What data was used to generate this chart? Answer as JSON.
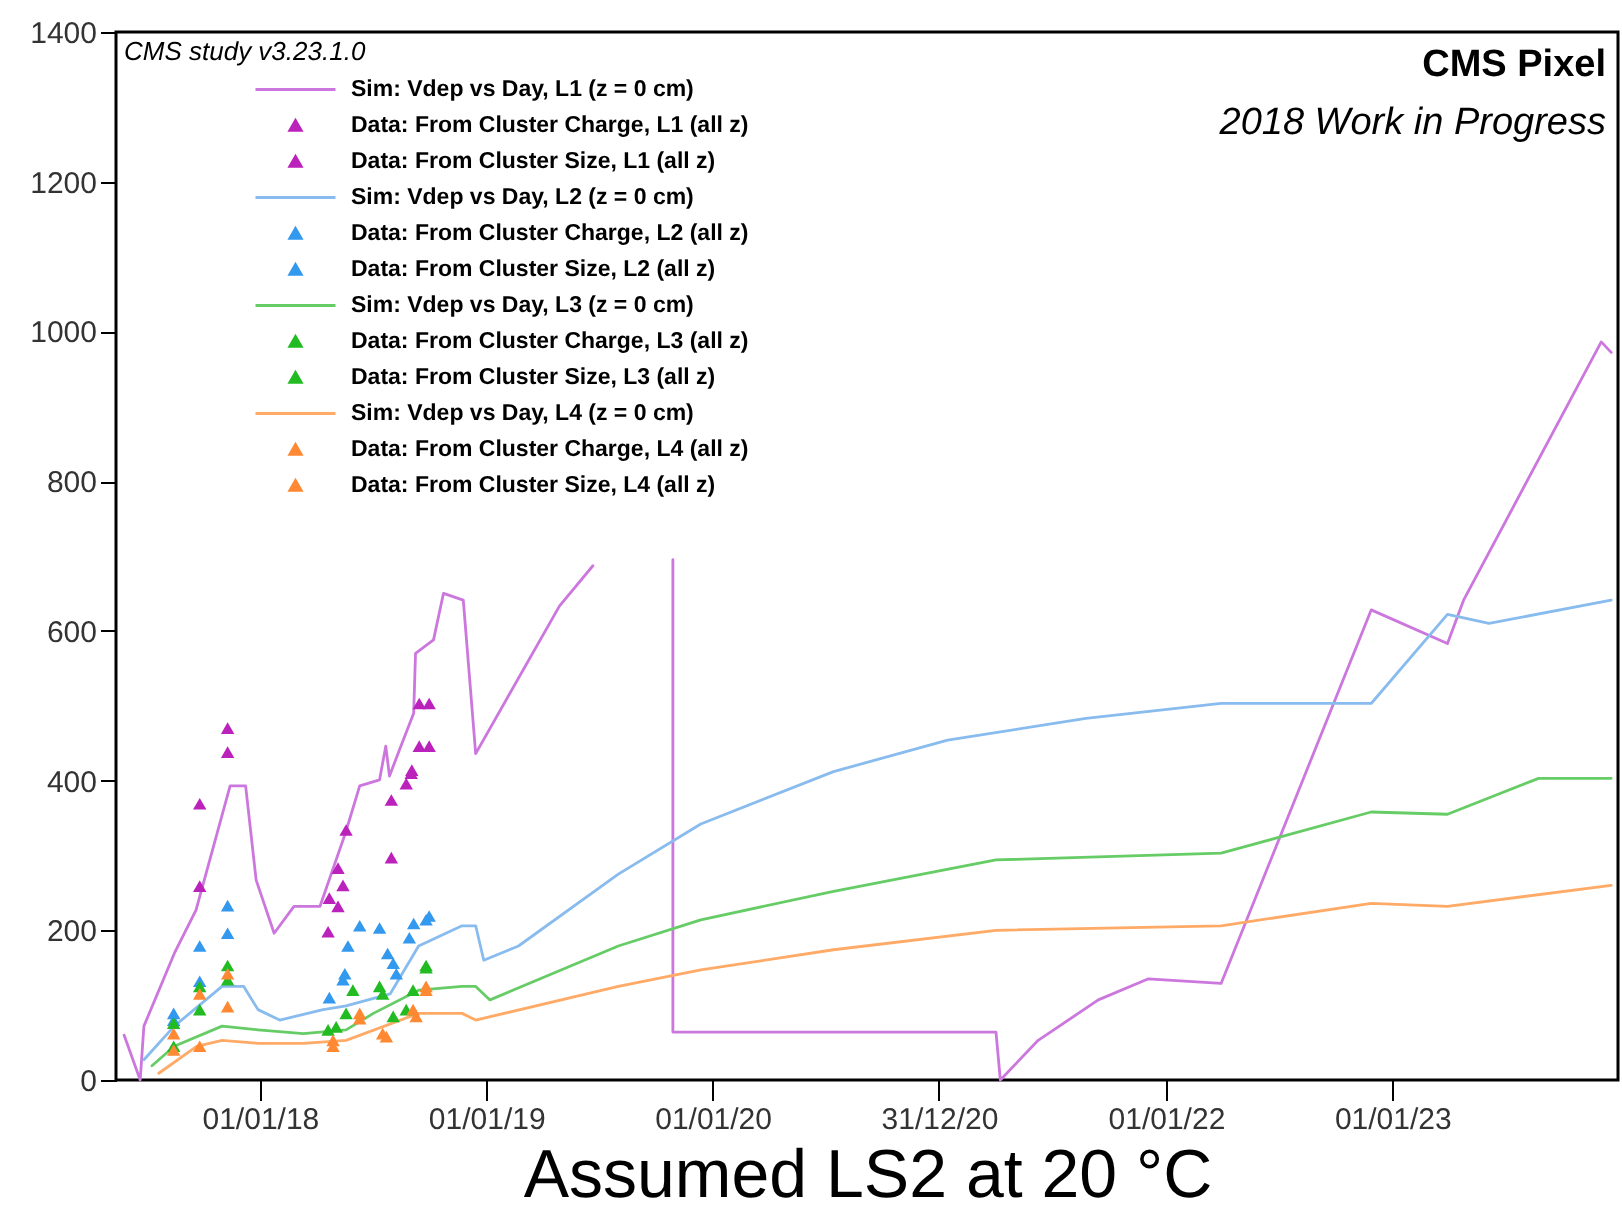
{
  "chart_data": {
    "type": "line",
    "title": "CMS Pixel",
    "subtitle": "2018 Work in Progress",
    "xlabel": "Assumed LS2 at 20 °C",
    "legend_title": "CMS study v3.23.1.0",
    "legend": "top left",
    "xlim": [
      "2017-05-14",
      "2023-12-31"
    ],
    "xticks": [
      {
        "value": "2018-01-01",
        "label": "01/01/18"
      },
      {
        "value": "2019-01-01",
        "label": "01/01/19"
      },
      {
        "value": "2020-01-01",
        "label": "01/01/20"
      },
      {
        "value": "2020-12-31",
        "label": "31/12/20"
      },
      {
        "value": "2022-01-01",
        "label": "01/01/22"
      },
      {
        "value": "2023-01-01",
        "label": "01/01/23"
      }
    ],
    "ylim": [
      0,
      1400
    ],
    "yticks": [
      0,
      200,
      400,
      600,
      800,
      1000,
      1200,
      1400
    ],
    "series": [
      {
        "name": "Sim: Vdep vs Day, L1 (z = 0 cm)",
        "color": "#cc77dd",
        "x": [
          "2017-05-27",
          "2017-06-22",
          "2017-06-28",
          "2017-08-16",
          "2017-09-20",
          "2017-11-14",
          "2017-12-09",
          "2017-12-26",
          "2018-01-24",
          "2018-02-25",
          "2018-04-08",
          "2018-05-19",
          "2018-06-11",
          "2018-07-13",
          "2018-07-23",
          "2018-07-29",
          "2018-08-14",
          "2018-09-06",
          "2018-09-09",
          "2018-10-08",
          "2018-10-24",
          "2018-11-25",
          "2018-12-15",
          "2019-04-29",
          "2019-06-22",
          "2019-08-01",
          "2019-10-29",
          "2019-10-29",
          "2021-04-02",
          "2021-04-09",
          "2021-06-09",
          "2021-09-14",
          "2021-12-03",
          "2022-03-31",
          "2022-11-28",
          "2023-03-31",
          "2023-04-26",
          "2023-12-04",
          "2023-12-20"
        ],
        "values": [
          60,
          0,
          72,
          169,
          227,
          393,
          393,
          267,
          196,
          232,
          232,
          330,
          393,
          401,
          446,
          406,
          441,
          490,
          570,
          588,
          650,
          641,
          436,
          633,
          687,
          null,
          695,
          64,
          64,
          0,
          53,
          107,
          135,
          129,
          628,
          583,
          641,
          986,
          972
        ]
      },
      {
        "name": "Data: From Cluster Charge, L1 (all z)",
        "type": "scatter",
        "marker": "triangle",
        "color": "#bb22bb",
        "x": [
          "2017-09-26",
          "2017-11-10",
          "2018-05-20",
          "2018-05-07",
          "2018-04-23",
          "2018-08-01",
          "2018-08-25",
          "2018-09-03",
          "2018-09-15",
          "2018-10-01"
        ],
        "values": [
          369,
          470,
          334,
          283,
          243,
          374,
          396,
          414,
          503,
          503
        ]
      },
      {
        "name": "Data: From Cluster Size, L1 (all z)",
        "type": "scatter",
        "marker": "triangle",
        "color": "#bb22bb",
        "x": [
          "2017-09-26",
          "2017-11-10",
          "2018-04-21",
          "2018-05-07",
          "2018-05-15",
          "2018-08-01",
          "2018-09-02",
          "2018-09-15",
          "2018-10-01"
        ],
        "values": [
          259,
          438,
          198,
          232,
          260,
          297,
          410,
          446,
          446
        ]
      },
      {
        "name": "Sim: Vdep vs Day, L2 (z = 0 cm)",
        "color": "#88bbee",
        "x": [
          "2017-06-28",
          "2017-08-16",
          "2017-11-01",
          "2017-12-06",
          "2017-12-29",
          "2018-02-02",
          "2018-04-13",
          "2018-05-20",
          "2018-07-30",
          "2018-09-14",
          "2018-11-23",
          "2018-12-15",
          "2018-12-28",
          "2019-02-22",
          "2019-08-02",
          "2019-12-13",
          "2020-07-14",
          "2021-01-14",
          "2021-08-25",
          "2022-03-31",
          "2022-11-28",
          "2023-03-31",
          "2023-06-06",
          "2023-12-20"
        ],
        "values": [
          27,
          72,
          125,
          125,
          94,
          80,
          94,
          99,
          115,
          179,
          206,
          206,
          160,
          179,
          275,
          342,
          412,
          454,
          483,
          503,
          503,
          622,
          610,
          641
        ]
      },
      {
        "name": "Data: From Cluster Charge, L2 (all z)",
        "type": "scatter",
        "marker": "triangle",
        "color": "#3399ee",
        "x": [
          "2017-08-15",
          "2017-09-26",
          "2017-11-10",
          "2018-05-23",
          "2018-05-18",
          "2018-07-13",
          "2018-07-26",
          "2018-08-09",
          "2018-09-06",
          "2018-10-01"
        ],
        "values": [
          89,
          179,
          233,
          179,
          142,
          203,
          169,
          142,
          209,
          219
        ]
      },
      {
        "name": "Data: From Cluster Size, L2 (all z)",
        "type": "scatter",
        "marker": "triangle",
        "color": "#3399ee",
        "x": [
          "2017-08-15",
          "2017-09-26",
          "2017-11-10",
          "2018-04-23",
          "2018-05-15",
          "2018-06-11",
          "2018-08-04",
          "2018-08-30",
          "2018-09-26"
        ],
        "values": [
          80,
          132,
          196,
          110,
          134,
          206,
          156,
          190,
          214
        ]
      },
      {
        "name": "Sim: Vdep vs Day, L3 (z = 0 cm)",
        "color": "#66cc66",
        "x": [
          "2017-07-11",
          "2017-08-16",
          "2017-11-01",
          "2017-12-29",
          "2018-03-12",
          "2018-05-20",
          "2018-07-03",
          "2018-09-14",
          "2018-11-23",
          "2018-12-15",
          "2019-01-07",
          "2019-08-02",
          "2019-12-13",
          "2020-07-14",
          "2021-04-02",
          "2022-03-31",
          "2022-11-28",
          "2023-03-31",
          "2023-08-25",
          "2023-12-20"
        ],
        "values": [
          19,
          45,
          72,
          67,
          62,
          67,
          89,
          120,
          125,
          125,
          107,
          179,
          214,
          252,
          294,
          303,
          358,
          355,
          403,
          403
        ]
      },
      {
        "name": "Data: From Cluster Charge, L3 (all z)",
        "type": "scatter",
        "marker": "triangle",
        "color": "#22bb22",
        "x": [
          "2017-08-15",
          "2017-09-26",
          "2017-11-10",
          "2018-04-21",
          "2018-05-20",
          "2018-07-13",
          "2018-08-04",
          "2018-09-05",
          "2018-09-26"
        ],
        "values": [
          76,
          125,
          153,
          67,
          89,
          125,
          85,
          120,
          153
        ]
      },
      {
        "name": "Data: From Cluster Size, L3 (all z)",
        "type": "scatter",
        "marker": "triangle",
        "color": "#22bb22",
        "x": [
          "2017-08-15",
          "2017-09-26",
          "2017-11-10",
          "2018-05-04",
          "2018-05-31",
          "2018-07-18",
          "2018-08-25",
          "2018-09-26"
        ],
        "values": [
          45,
          94,
          134,
          71,
          120,
          115,
          94,
          150
        ]
      },
      {
        "name": "Sim: Vdep vs Day, L4 (z = 0 cm)",
        "color": "#ffaa66",
        "x": [
          "2017-07-22",
          "2017-09-21",
          "2017-11-01",
          "2017-12-29",
          "2018-03-12",
          "2018-05-20",
          "2018-09-14",
          "2018-11-23",
          "2018-12-15",
          "2019-08-02",
          "2019-12-13",
          "2020-07-14",
          "2021-04-02",
          "2022-03-31",
          "2022-11-28",
          "2023-03-31",
          "2023-12-20"
        ],
        "values": [
          9,
          45,
          53,
          49,
          49,
          53,
          89,
          89,
          80,
          125,
          147,
          174,
          200,
          206,
          236,
          232,
          260
        ]
      },
      {
        "name": "Data: From Cluster Charge, L4 (all z)",
        "type": "scatter",
        "marker": "triangle",
        "color": "#ff8833",
        "x": [
          "2017-08-15",
          "2017-09-26",
          "2017-11-10",
          "2018-04-29",
          "2018-06-11",
          "2018-07-18",
          "2018-09-05",
          "2018-09-26"
        ],
        "values": [
          62,
          115,
          142,
          45,
          82,
          62,
          94,
          120
        ]
      },
      {
        "name": "Data: From Cluster Size, L4 (all z)",
        "type": "scatter",
        "marker": "triangle",
        "color": "#ff8833",
        "x": [
          "2017-08-15",
          "2017-09-26",
          "2017-11-10",
          "2018-04-29",
          "2018-06-11",
          "2018-07-24",
          "2018-09-10",
          "2018-09-26"
        ],
        "values": [
          40,
          45,
          98,
          53,
          89,
          58,
          85,
          125
        ]
      }
    ]
  }
}
